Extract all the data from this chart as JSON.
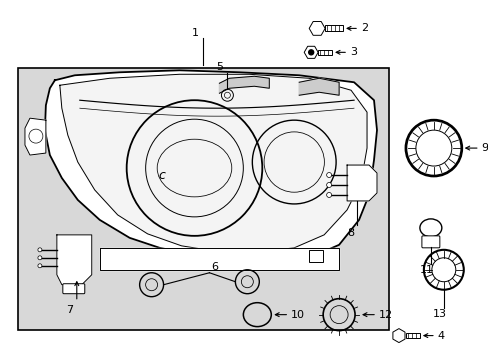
{
  "bg_color": "#ffffff",
  "box_bg": "#d8d8d8",
  "line_color": "#000000",
  "fig_width": 4.89,
  "fig_height": 3.6,
  "dpi": 100
}
